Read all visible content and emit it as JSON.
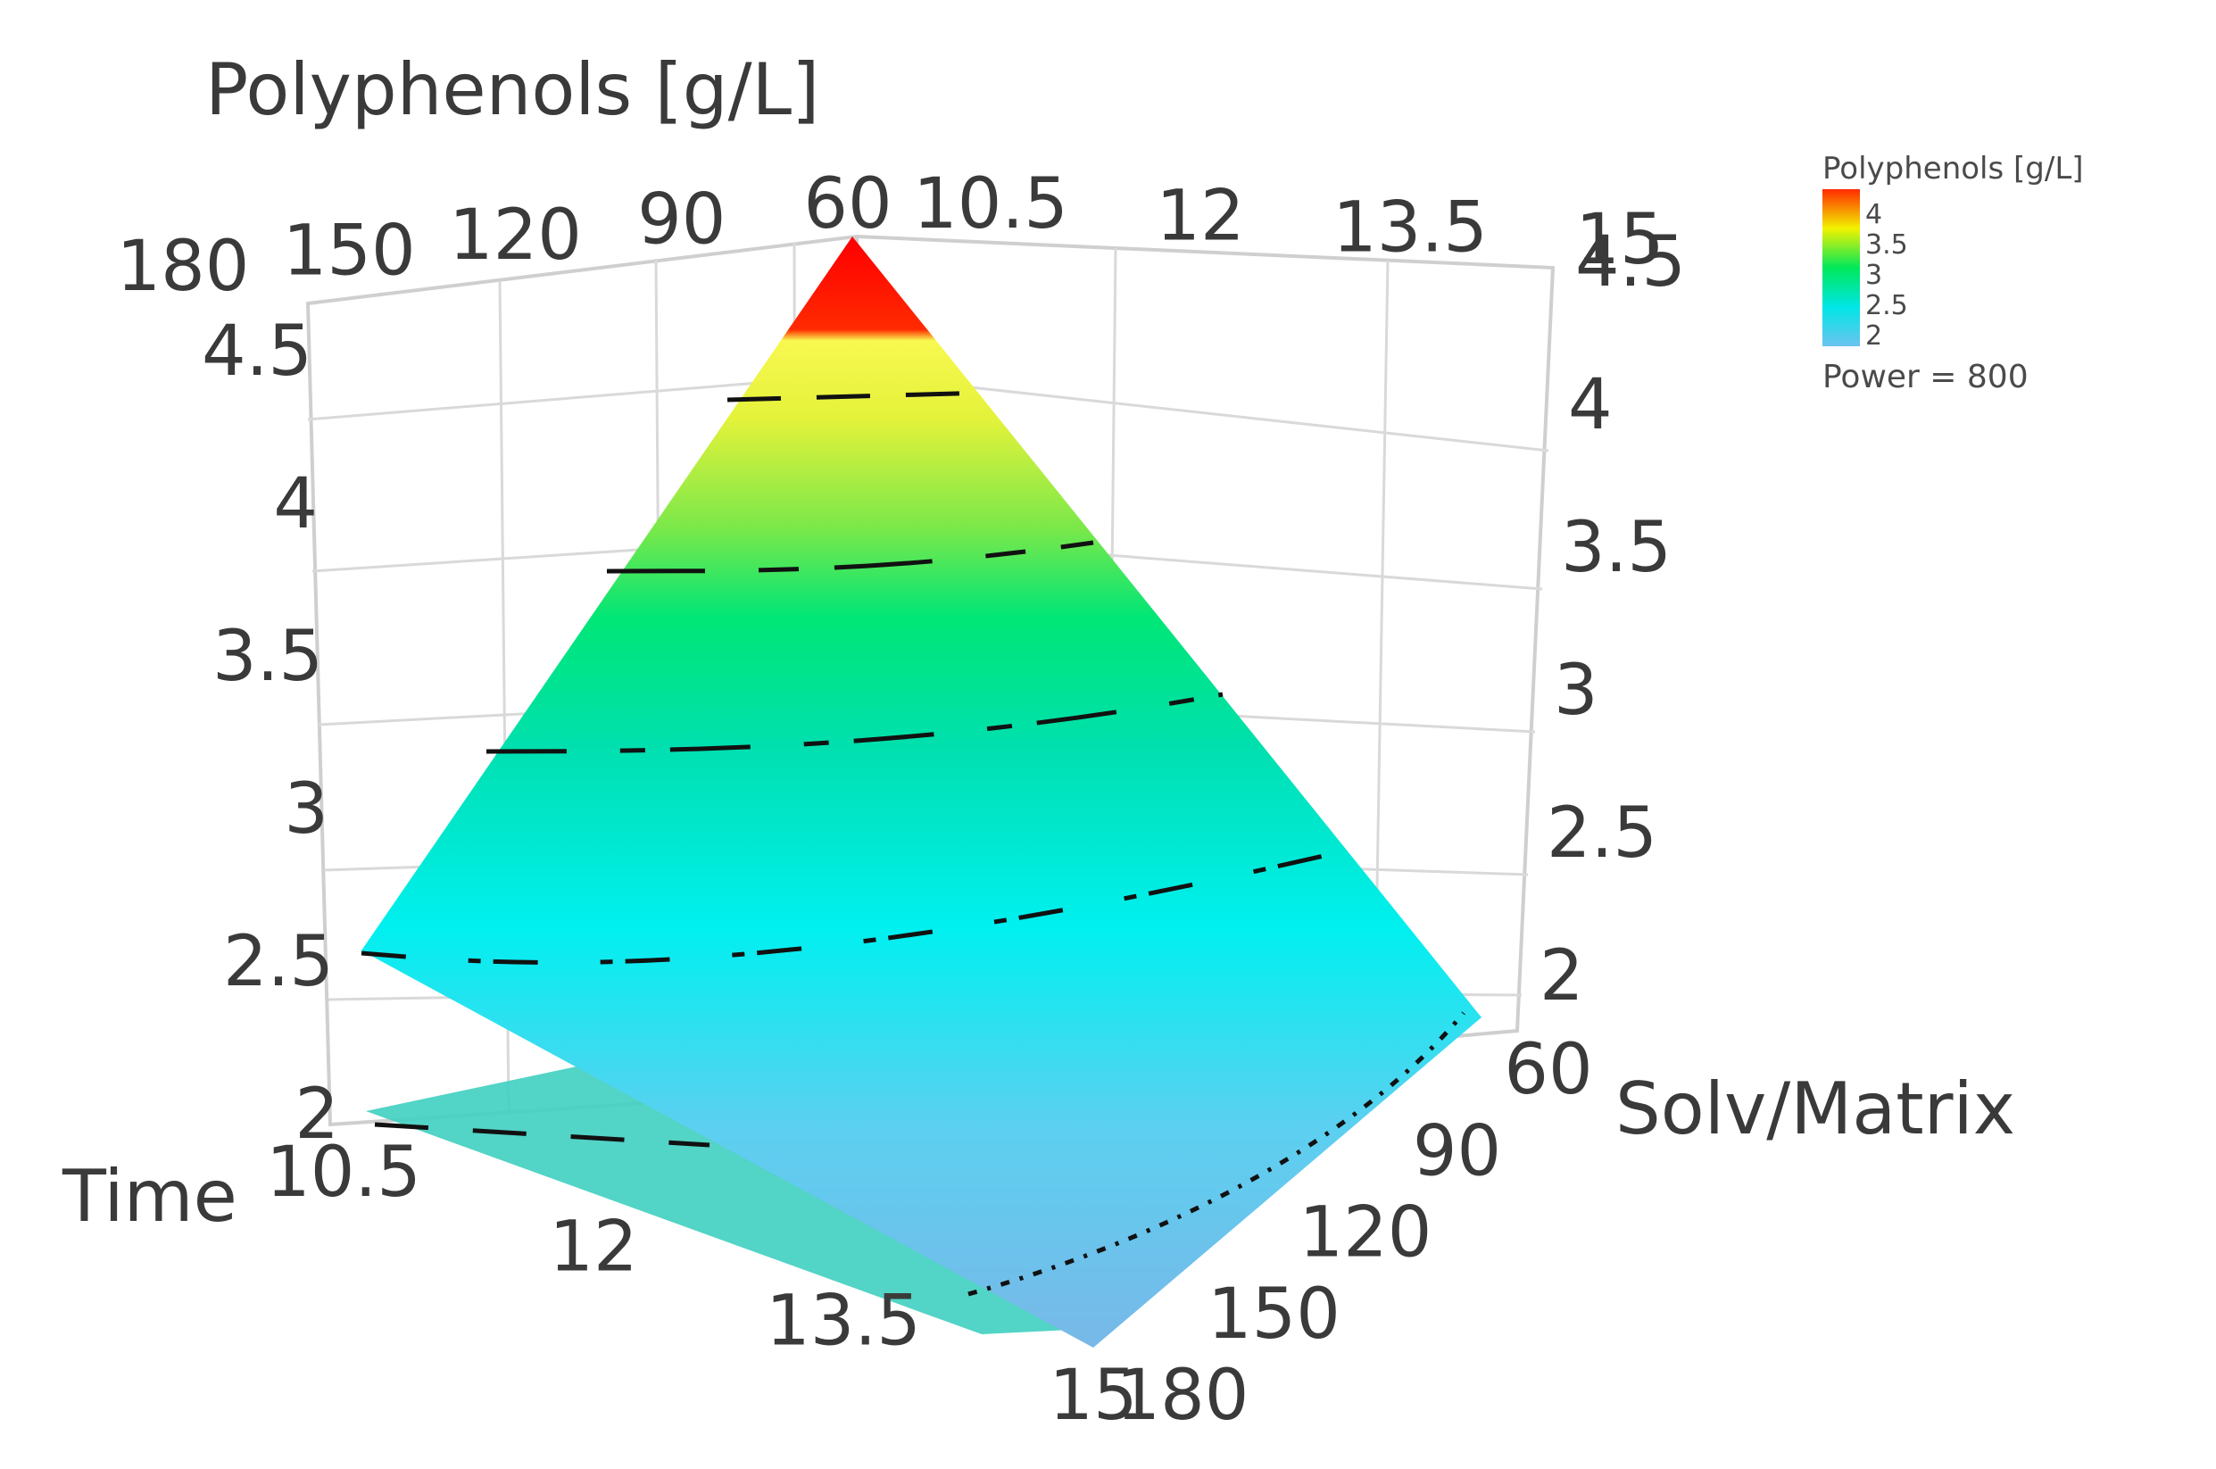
{
  "chart_data": {
    "type": "surface",
    "title": "",
    "zlabel": "Polyphenols [g/L]",
    "xlabel": "Time",
    "ylabel": "Solv/Matrix",
    "x_ticks": [
      "10.5",
      "12",
      "13.5",
      "15"
    ],
    "y_ticks": [
      "60",
      "90",
      "120",
      "150",
      "180"
    ],
    "z_ticks": [
      "2",
      "2.5",
      "3",
      "3.5",
      "4",
      "4.5"
    ],
    "xlim": [
      9,
      15
    ],
    "ylim": [
      60,
      180
    ],
    "zlim": [
      2,
      4.5
    ],
    "surface": {
      "x": [
        9,
        15
      ],
      "y": [
        60,
        180
      ],
      "z_grid": [
        [
          4.5,
          2.6
        ],
        [
          2.1,
          2.0
        ]
      ]
    },
    "contour_levels": [
      2.5,
      3.0,
      3.5,
      4.0
    ],
    "legend": {
      "title": "Polyphenols [g/L]",
      "ticks": [
        "4",
        "3.5",
        "3",
        "2.5",
        "2"
      ],
      "colors": [
        "#ff2a00",
        "#f2f200",
        "#00e85a",
        "#00e6e6",
        "#6cc3ee"
      ],
      "note": "Power = 800"
    }
  }
}
